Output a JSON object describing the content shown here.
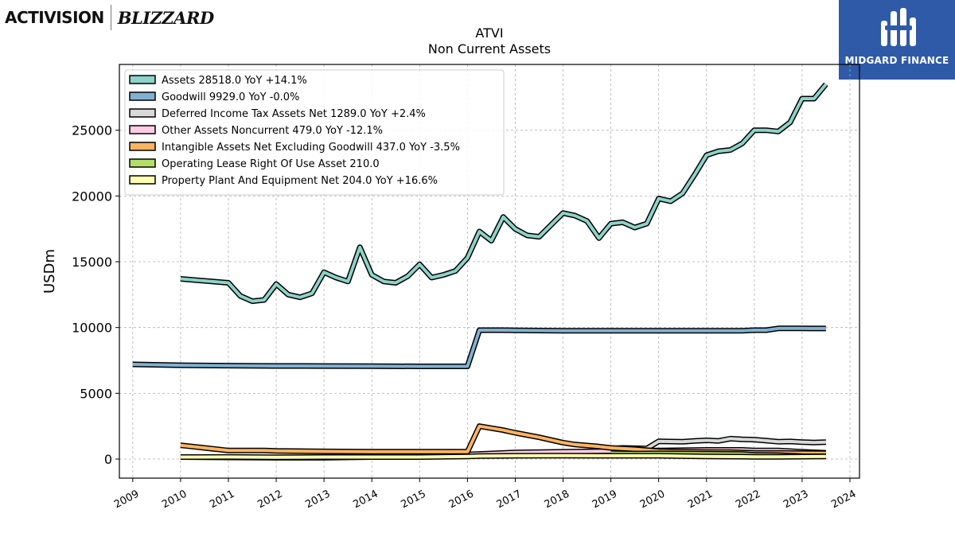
{
  "brand": {
    "left_logo_1": "ACTIVISION",
    "left_logo_2": "BLIZZARD",
    "right_logo": "MIDGARD FINANCE"
  },
  "chart_data": {
    "type": "line",
    "title": "ATVI",
    "subtitle": "Non Current  Assets",
    "ylabel": "USDm",
    "xlabel": "",
    "xlim": [
      2008.72,
      2024.2
    ],
    "ylim": [
      -1450,
      30000
    ],
    "grid": true,
    "legend_position": "top-left",
    "yticks": [
      0,
      5000,
      10000,
      15000,
      20000,
      25000
    ],
    "xticks": [
      2009,
      2010,
      2011,
      2012,
      2013,
      2014,
      2015,
      2016,
      2017,
      2018,
      2019,
      2020,
      2021,
      2022,
      2023,
      2024
    ],
    "series": [
      {
        "name": "Assets",
        "legend": "Assets  28518.0 YoY +14.1%",
        "color": "#8dd3c7",
        "points": [
          [
            2010.0,
            13700
          ],
          [
            2011.0,
            13400
          ],
          [
            2011.25,
            12400
          ],
          [
            2011.5,
            12000
          ],
          [
            2011.75,
            12100
          ],
          [
            2012.0,
            13300
          ],
          [
            2012.25,
            12500
          ],
          [
            2012.5,
            12300
          ],
          [
            2012.75,
            12600
          ],
          [
            2013.0,
            14200
          ],
          [
            2013.25,
            13800
          ],
          [
            2013.5,
            13500
          ],
          [
            2013.75,
            16100
          ],
          [
            2014.0,
            14000
          ],
          [
            2014.25,
            13500
          ],
          [
            2014.5,
            13400
          ],
          [
            2014.75,
            13900
          ],
          [
            2015.0,
            14800
          ],
          [
            2015.25,
            13800
          ],
          [
            2015.5,
            14000
          ],
          [
            2015.75,
            14300
          ],
          [
            2016.0,
            15300
          ],
          [
            2016.25,
            17300
          ],
          [
            2016.5,
            16600
          ],
          [
            2016.75,
            18400
          ],
          [
            2017.0,
            17500
          ],
          [
            2017.25,
            17000
          ],
          [
            2017.5,
            16900
          ],
          [
            2017.75,
            17800
          ],
          [
            2018.0,
            18700
          ],
          [
            2018.25,
            18500
          ],
          [
            2018.5,
            18100
          ],
          [
            2018.75,
            16800
          ],
          [
            2019.0,
            17900
          ],
          [
            2019.25,
            18000
          ],
          [
            2019.5,
            17600
          ],
          [
            2019.75,
            17900
          ],
          [
            2020.0,
            19800
          ],
          [
            2020.25,
            19600
          ],
          [
            2020.5,
            20200
          ],
          [
            2020.75,
            21600
          ],
          [
            2021.0,
            23100
          ],
          [
            2021.25,
            23400
          ],
          [
            2021.5,
            23500
          ],
          [
            2021.75,
            24000
          ],
          [
            2022.0,
            25000
          ],
          [
            2022.25,
            25000
          ],
          [
            2022.5,
            24900
          ],
          [
            2022.75,
            25600
          ],
          [
            2023.0,
            27400
          ],
          [
            2023.25,
            27400
          ],
          [
            2023.5,
            28500
          ]
        ]
      },
      {
        "name": "Goodwill",
        "legend": "Goodwill  9929.0 YoY -0.0%",
        "color": "#80b1d3",
        "points": [
          [
            2009.0,
            7200
          ],
          [
            2010.0,
            7130
          ],
          [
            2011.0,
            7100
          ],
          [
            2012.0,
            7080
          ],
          [
            2013.0,
            7070
          ],
          [
            2014.0,
            7060
          ],
          [
            2015.0,
            7050
          ],
          [
            2016.0,
            7050
          ],
          [
            2016.25,
            9800
          ],
          [
            2016.75,
            9800
          ],
          [
            2017.0,
            9780
          ],
          [
            2018.0,
            9760
          ],
          [
            2019.0,
            9760
          ],
          [
            2020.0,
            9760
          ],
          [
            2021.0,
            9760
          ],
          [
            2021.75,
            9760
          ],
          [
            2022.0,
            9800
          ],
          [
            2022.25,
            9800
          ],
          [
            2022.5,
            9930
          ],
          [
            2023.0,
            9930
          ],
          [
            2023.5,
            9929
          ]
        ]
      },
      {
        "name": "Deferred Income Tax Assets Net",
        "legend": "Deferred Income Tax Assets Net  1289.0 YoY +2.4%",
        "color": "#d9d9d9",
        "points": [
          [
            2019.0,
            800
          ],
          [
            2019.25,
            850
          ],
          [
            2019.75,
            800
          ],
          [
            2020.0,
            1350
          ],
          [
            2020.25,
            1330
          ],
          [
            2020.5,
            1320
          ],
          [
            2020.75,
            1380
          ],
          [
            2021.0,
            1420
          ],
          [
            2021.25,
            1380
          ],
          [
            2021.5,
            1550
          ],
          [
            2021.75,
            1500
          ],
          [
            2022.0,
            1480
          ],
          [
            2022.25,
            1400
          ],
          [
            2022.5,
            1320
          ],
          [
            2022.75,
            1340
          ],
          [
            2023.0,
            1290
          ],
          [
            2023.25,
            1260
          ],
          [
            2023.5,
            1289
          ]
        ]
      },
      {
        "name": "Other Assets Noncurrent",
        "legend": "Other Assets Noncurrent  479.0 YoY -12.1%",
        "color": "#fccde5",
        "points": [
          [
            2010.0,
            150
          ],
          [
            2011.0,
            120
          ],
          [
            2012.0,
            100
          ],
          [
            2013.0,
            100
          ],
          [
            2014.0,
            150
          ],
          [
            2015.0,
            250
          ],
          [
            2016.0,
            350
          ],
          [
            2017.0,
            500
          ],
          [
            2018.0,
            550
          ],
          [
            2019.0,
            600
          ],
          [
            2019.75,
            650
          ],
          [
            2020.0,
            650
          ],
          [
            2021.0,
            700
          ],
          [
            2021.75,
            700
          ],
          [
            2022.0,
            650
          ],
          [
            2022.5,
            650
          ],
          [
            2023.0,
            550
          ],
          [
            2023.5,
            479
          ]
        ]
      },
      {
        "name": "Intangible Assets Net Excluding Goodwill",
        "legend": "Intangible Assets Net Excluding Goodwill  437.0 YoY -3.5%",
        "color": "#fdb462",
        "points": [
          [
            2010.0,
            1050
          ],
          [
            2011.0,
            650
          ],
          [
            2011.75,
            650
          ],
          [
            2012.0,
            620
          ],
          [
            2013.0,
            580
          ],
          [
            2014.0,
            560
          ],
          [
            2015.0,
            560
          ],
          [
            2016.0,
            560
          ],
          [
            2016.25,
            2500
          ],
          [
            2016.75,
            2200
          ],
          [
            2017.0,
            2000
          ],
          [
            2017.5,
            1650
          ],
          [
            2018.0,
            1250
          ],
          [
            2018.25,
            1100
          ],
          [
            2018.75,
            950
          ],
          [
            2019.0,
            850
          ],
          [
            2019.5,
            750
          ],
          [
            2020.0,
            600
          ],
          [
            2020.5,
            550
          ],
          [
            2021.0,
            530
          ],
          [
            2021.5,
            520
          ],
          [
            2022.0,
            470
          ],
          [
            2022.5,
            460
          ],
          [
            2023.0,
            450
          ],
          [
            2023.5,
            437
          ]
        ]
      },
      {
        "name": "Operating Lease Right Of Use Asset",
        "legend": "Operating Lease Right Of Use Asset  210.0",
        "color": "#b3de69",
        "points": [
          [
            2019.0,
            450
          ],
          [
            2019.5,
            420
          ],
          [
            2020.0,
            430
          ],
          [
            2021.0,
            400
          ],
          [
            2021.75,
            380
          ],
          [
            2022.0,
            320
          ],
          [
            2022.5,
            300
          ],
          [
            2023.0,
            220
          ],
          [
            2023.5,
            210
          ]
        ]
      },
      {
        "name": "Property Plant And Equipment Net",
        "legend": "Property Plant And Equipment Net  204.0 YoY +16.6%",
        "color": "#ffffb3",
        "points": [
          [
            2010.0,
            150
          ],
          [
            2011.0,
            160
          ],
          [
            2012.0,
            140
          ],
          [
            2013.0,
            150
          ],
          [
            2014.0,
            150
          ],
          [
            2015.0,
            150
          ],
          [
            2016.0,
            200
          ],
          [
            2016.25,
            230
          ],
          [
            2017.0,
            250
          ],
          [
            2018.0,
            260
          ],
          [
            2019.0,
            250
          ],
          [
            2020.0,
            250
          ],
          [
            2021.0,
            200
          ],
          [
            2021.75,
            180
          ],
          [
            2022.0,
            170
          ],
          [
            2022.5,
            170
          ],
          [
            2023.0,
            180
          ],
          [
            2023.5,
            204
          ]
        ]
      }
    ]
  }
}
